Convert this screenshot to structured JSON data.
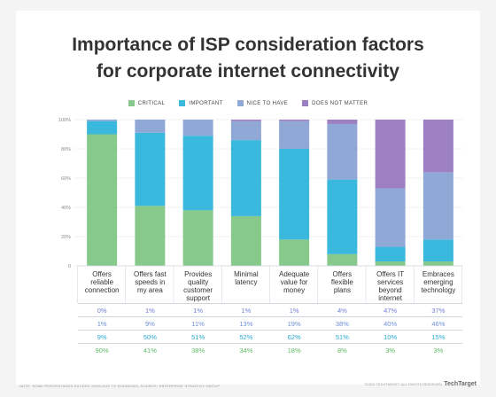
{
  "chart_data": {
    "type": "bar",
    "stacked": true,
    "title_lines": [
      "Importance of ISP consideration factors",
      "for corporate internet connectivity"
    ],
    "categories": [
      [
        "Offers",
        "reliable",
        "connection"
      ],
      [
        "Offers fast",
        "speeds in",
        "my area"
      ],
      [
        "Provides",
        "quality",
        "customer",
        "support"
      ],
      [
        "Minimal",
        "latency"
      ],
      [
        "Adequate",
        "value for",
        "money"
      ],
      [
        "Offers",
        "flexible",
        "plans"
      ],
      [
        "Offers IT",
        "services",
        "beyond",
        "internet"
      ],
      [
        "Embraces",
        "emerging",
        "technology"
      ]
    ],
    "series": [
      {
        "name": "CRITICAL",
        "color": "#86c98a",
        "values": [
          90,
          41,
          38,
          34,
          18,
          8,
          3,
          3
        ]
      },
      {
        "name": "IMPORTANT",
        "color": "#3bb8dd",
        "values": [
          9,
          50,
          51,
          52,
          62,
          51,
          10,
          15
        ]
      },
      {
        "name": "NICE TO HAVE",
        "color": "#8fa8d6",
        "values": [
          1,
          9,
          11,
          13,
          19,
          38,
          40,
          46
        ]
      },
      {
        "name": "DOES NOT MATTER",
        "color": "#9d80c2",
        "values": [
          0,
          1,
          1,
          1,
          1,
          4,
          47,
          37
        ]
      }
    ],
    "table_rows": [
      {
        "series": "DOES NOT MATTER",
        "color": "#6f7fd0",
        "cells": [
          "0%",
          "1%",
          "1%",
          "1%",
          "1%",
          "4%",
          "47%",
          "37%"
        ]
      },
      {
        "series": "NICE TO HAVE",
        "color": "#6f90d8",
        "cells": [
          "1%",
          "9%",
          "11%",
          "13%",
          "19%",
          "38%",
          "40%",
          "46%"
        ]
      },
      {
        "series": "IMPORTANT",
        "color": "#2aa7d4",
        "cells": [
          "9%",
          "50%",
          "51%",
          "52%",
          "62%",
          "51%",
          "10%",
          "15%"
        ]
      },
      {
        "series": "CRITICAL",
        "color": "#5cb863",
        "cells": [
          "90%",
          "41%",
          "38%",
          "34%",
          "18%",
          "8%",
          "3%",
          "3%"
        ]
      }
    ],
    "yticks": [
      "0",
      "20%",
      "40%",
      "60%",
      "80%",
      "100%"
    ],
    "ylim": [
      0,
      100
    ],
    "grid": true,
    "legend_position": "top-center"
  },
  "footer": {
    "note": "NOTE: SOME PERCENTAGES EXCEED 100% DUE TO ROUNDING; SOURCE: ENTERPRISE STRATEGY GROUP",
    "copyright": "©2023 TECHTARGET. ALL RIGHTS RESERVED.",
    "brand": "TechTarget"
  }
}
